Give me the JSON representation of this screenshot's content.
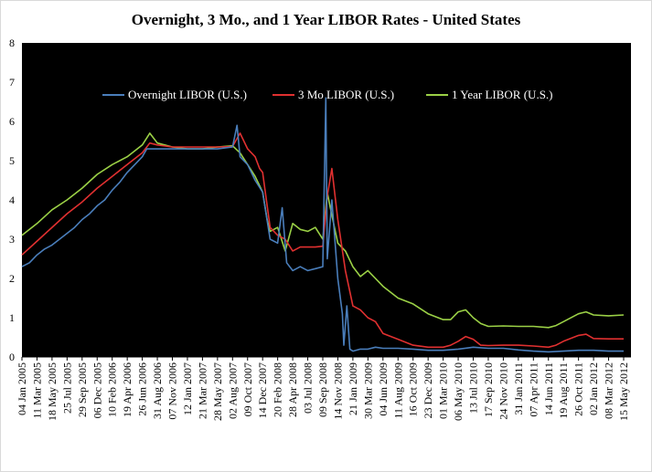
{
  "chart_data": {
    "type": "line",
    "title": "Overnight, 3 Mo., and 1 Year LIBOR Rates  - United States",
    "xlabel": "",
    "ylabel": "",
    "ylim": [
      0,
      8
    ],
    "yticks": [
      0,
      1,
      2,
      3,
      4,
      5,
      6,
      7,
      8
    ],
    "x_tick_labels": [
      "04 Jan 2005",
      "11 Mar 2005",
      "18 May 2005",
      "25 Jul 2005",
      "29 Sep 2005",
      "06 Dec 2005",
      "10 Feb 2006",
      "19 Apr 2006",
      "26 Jun 2006",
      "31 Aug 2006",
      "07 Nov 2006",
      "12 Jan 2007",
      "21 Mar 2007",
      "28 May 2007",
      "02 Aug 2007",
      "09 Oct 2007",
      "14 Dec 2007",
      "20 Feb 2008",
      "28 Apr 2008",
      "03 Jul 2008",
      "09 Sep 2008",
      "14 Nov 2008",
      "21 Jan 2009",
      "30 Mar 2009",
      "04 Jun 2009",
      "11 Aug 2009",
      "16 Oct 2009",
      "23 Dec 2009",
      "01 Mar 2010",
      "06 May 2010",
      "13 Jul 2010",
      "17 Sep 2010",
      "24 Nov 2010",
      "31 Jan 2011",
      "07 Apr 2011",
      "14 Jun 2011",
      "19 Aug 2011",
      "26 Oct 2011",
      "02 Jan 2012",
      "08 Mar 2012",
      "15 May 2012"
    ],
    "grid": false,
    "legend_position": "top",
    "background": "#000000",
    "series": [
      {
        "name": "Overnight LIBOR (U.S.)",
        "color": "#4a7ebb",
        "points": [
          [
            0,
            2.3
          ],
          [
            0.5,
            2.4
          ],
          [
            1,
            2.6
          ],
          [
            1.5,
            2.75
          ],
          [
            2,
            2.85
          ],
          [
            2.5,
            3.0
          ],
          [
            3,
            3.15
          ],
          [
            3.5,
            3.3
          ],
          [
            4,
            3.5
          ],
          [
            4.5,
            3.65
          ],
          [
            5,
            3.85
          ],
          [
            5.5,
            4.0
          ],
          [
            6,
            4.25
          ],
          [
            6.5,
            4.45
          ],
          [
            7,
            4.7
          ],
          [
            7.5,
            4.9
          ],
          [
            8,
            5.1
          ],
          [
            8.3,
            5.3
          ],
          [
            9,
            5.3
          ],
          [
            10,
            5.3
          ],
          [
            11,
            5.3
          ],
          [
            12,
            5.3
          ],
          [
            13,
            5.3
          ],
          [
            14,
            5.35
          ],
          [
            14.3,
            5.9
          ],
          [
            14.5,
            5.1
          ],
          [
            15,
            4.9
          ],
          [
            15.5,
            4.5
          ],
          [
            16,
            4.2
          ],
          [
            16.5,
            3.0
          ],
          [
            17,
            2.9
          ],
          [
            17.3,
            3.8
          ],
          [
            17.6,
            2.4
          ],
          [
            18,
            2.2
          ],
          [
            18.5,
            2.3
          ],
          [
            19,
            2.2
          ],
          [
            19.5,
            2.25
          ],
          [
            20,
            2.3
          ],
          [
            20.2,
            6.6
          ],
          [
            20.3,
            2.5
          ],
          [
            20.6,
            4.0
          ],
          [
            21,
            2.0
          ],
          [
            21.3,
            1.1
          ],
          [
            21.4,
            0.3
          ],
          [
            21.6,
            1.3
          ],
          [
            21.8,
            0.2
          ],
          [
            22,
            0.15
          ],
          [
            22.5,
            0.2
          ],
          [
            23,
            0.2
          ],
          [
            23.5,
            0.25
          ],
          [
            24,
            0.22
          ],
          [
            25,
            0.22
          ],
          [
            26,
            0.2
          ],
          [
            27,
            0.17
          ],
          [
            28,
            0.17
          ],
          [
            29,
            0.2
          ],
          [
            30,
            0.25
          ],
          [
            31,
            0.22
          ],
          [
            32,
            0.22
          ],
          [
            33,
            0.18
          ],
          [
            34,
            0.15
          ],
          [
            35,
            0.13
          ],
          [
            36,
            0.15
          ],
          [
            37,
            0.17
          ],
          [
            38,
            0.17
          ],
          [
            39,
            0.15
          ],
          [
            40,
            0.15
          ]
        ]
      },
      {
        "name": "3 Mo LIBOR (U.S.)",
        "color": "#e03030",
        "points": [
          [
            0,
            2.6
          ],
          [
            1,
            2.95
          ],
          [
            2,
            3.3
          ],
          [
            3,
            3.65
          ],
          [
            4,
            3.95
          ],
          [
            5,
            4.3
          ],
          [
            6,
            4.6
          ],
          [
            7,
            4.9
          ],
          [
            8,
            5.2
          ],
          [
            8.5,
            5.45
          ],
          [
            9,
            5.4
          ],
          [
            10,
            5.35
          ],
          [
            11,
            5.35
          ],
          [
            12,
            5.35
          ],
          [
            13,
            5.35
          ],
          [
            14,
            5.36
          ],
          [
            14.5,
            5.7
          ],
          [
            15,
            5.3
          ],
          [
            15.5,
            5.1
          ],
          [
            15.8,
            4.8
          ],
          [
            16,
            4.7
          ],
          [
            16.5,
            3.3
          ],
          [
            17,
            3.1
          ],
          [
            17.5,
            3.0
          ],
          [
            18,
            2.7
          ],
          [
            18.5,
            2.8
          ],
          [
            19,
            2.8
          ],
          [
            19.5,
            2.8
          ],
          [
            20,
            2.82
          ],
          [
            20.3,
            4.1
          ],
          [
            20.6,
            4.8
          ],
          [
            21,
            3.5
          ],
          [
            21.5,
            2.2
          ],
          [
            22,
            1.3
          ],
          [
            22.5,
            1.2
          ],
          [
            23,
            1.0
          ],
          [
            23.5,
            0.9
          ],
          [
            24,
            0.6
          ],
          [
            25,
            0.45
          ],
          [
            26,
            0.3
          ],
          [
            27,
            0.25
          ],
          [
            28,
            0.25
          ],
          [
            28.5,
            0.3
          ],
          [
            29,
            0.4
          ],
          [
            29.5,
            0.52
          ],
          [
            30,
            0.45
          ],
          [
            30.5,
            0.3
          ],
          [
            31,
            0.29
          ],
          [
            32,
            0.3
          ],
          [
            33,
            0.3
          ],
          [
            34,
            0.28
          ],
          [
            35,
            0.25
          ],
          [
            35.5,
            0.3
          ],
          [
            36,
            0.4
          ],
          [
            37,
            0.55
          ],
          [
            37.5,
            0.58
          ],
          [
            38,
            0.47
          ],
          [
            39,
            0.46
          ],
          [
            40,
            0.46
          ]
        ]
      },
      {
        "name": "1 Year LIBOR (U.S.)",
        "color": "#9bd146",
        "points": [
          [
            0,
            3.1
          ],
          [
            1,
            3.4
          ],
          [
            2,
            3.75
          ],
          [
            3,
            4.0
          ],
          [
            4,
            4.3
          ],
          [
            5,
            4.65
          ],
          [
            6,
            4.9
          ],
          [
            7,
            5.1
          ],
          [
            8,
            5.4
          ],
          [
            8.5,
            5.7
          ],
          [
            9,
            5.45
          ],
          [
            10,
            5.35
          ],
          [
            11,
            5.3
          ],
          [
            12,
            5.3
          ],
          [
            13,
            5.35
          ],
          [
            14,
            5.38
          ],
          [
            14.5,
            5.2
          ],
          [
            15,
            4.9
          ],
          [
            15.5,
            4.6
          ],
          [
            16,
            4.2
          ],
          [
            16.3,
            3.5
          ],
          [
            16.5,
            3.2
          ],
          [
            17,
            3.3
          ],
          [
            17.5,
            2.7
          ],
          [
            18,
            3.4
          ],
          [
            18.5,
            3.25
          ],
          [
            19,
            3.2
          ],
          [
            19.5,
            3.3
          ],
          [
            20,
            3.0
          ],
          [
            20.3,
            4.2
          ],
          [
            20.5,
            3.8
          ],
          [
            21,
            2.9
          ],
          [
            21.5,
            2.7
          ],
          [
            22,
            2.3
          ],
          [
            22.5,
            2.05
          ],
          [
            23,
            2.2
          ],
          [
            23.5,
            2.0
          ],
          [
            24,
            1.8
          ],
          [
            25,
            1.5
          ],
          [
            26,
            1.35
          ],
          [
            27,
            1.1
          ],
          [
            28,
            0.95
          ],
          [
            28.5,
            0.95
          ],
          [
            29,
            1.15
          ],
          [
            29.5,
            1.2
          ],
          [
            30,
            1.0
          ],
          [
            30.5,
            0.85
          ],
          [
            31,
            0.78
          ],
          [
            32,
            0.79
          ],
          [
            33,
            0.78
          ],
          [
            34,
            0.78
          ],
          [
            35,
            0.75
          ],
          [
            35.5,
            0.8
          ],
          [
            36,
            0.9
          ],
          [
            37,
            1.1
          ],
          [
            37.5,
            1.15
          ],
          [
            38,
            1.07
          ],
          [
            39,
            1.05
          ],
          [
            40,
            1.07
          ]
        ]
      }
    ]
  }
}
